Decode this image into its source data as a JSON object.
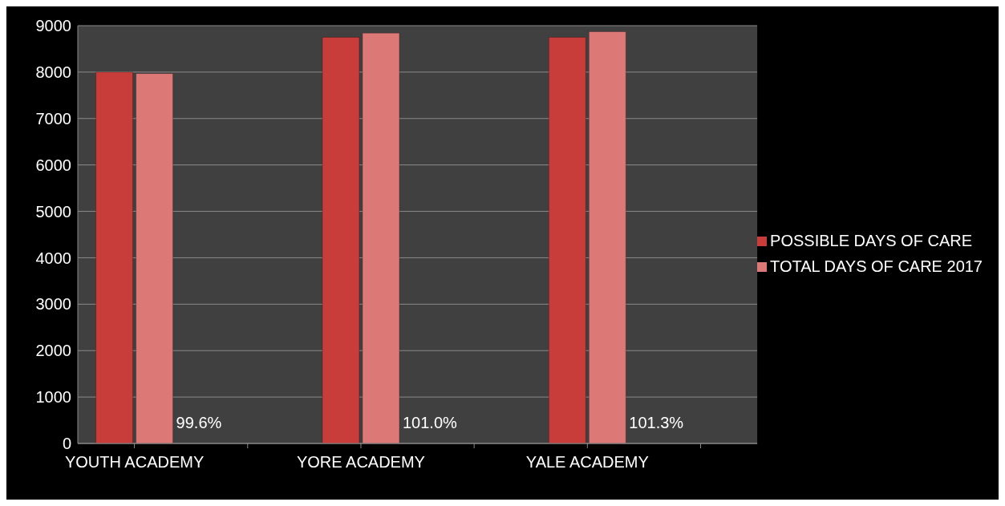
{
  "chart_data": {
    "type": "bar",
    "categories": [
      "YOUTH ACADEMY",
      null,
      "YORE ACADEMY",
      null,
      "YALE ACADEMY",
      null
    ],
    "series": [
      {
        "name": "POSSIBLE DAYS OF CARE",
        "color": "#c83c3a",
        "values": [
          8000,
          null,
          8750,
          null,
          8750,
          null
        ]
      },
      {
        "name": "TOTAL DAYS OF CARE 2017",
        "color": "#dc7876",
        "values": [
          7970,
          null,
          8840,
          null,
          8870,
          null
        ]
      }
    ],
    "ylim": [
      0,
      9000
    ],
    "yticks": [
      0,
      1000,
      2000,
      3000,
      4000,
      5000,
      6000,
      7000,
      8000,
      9000
    ],
    "grid": "y",
    "legend": "right",
    "annotations": [
      {
        "text": "99.6%",
        "x": "YOUTH ACADEMY",
        "y": 450
      },
      {
        "text": "101.0%",
        "x": "YORE ACADEMY",
        "y": 450
      },
      {
        "text": "101.3%",
        "x": "YALE ACADEMY",
        "y": 450
      }
    ]
  }
}
